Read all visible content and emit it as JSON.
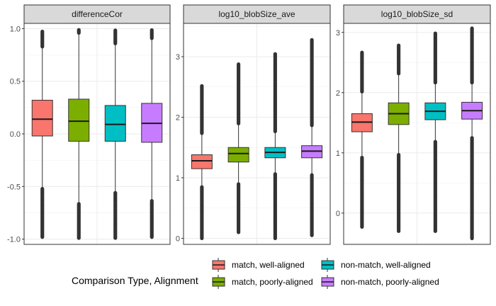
{
  "chart_data": {
    "type": "box",
    "facets": [
      {
        "title": "differenceCor",
        "ylim": [
          -1.05,
          1.05
        ],
        "yticks": [
          -1.0,
          -0.5,
          0.0,
          0.5,
          1.0
        ],
        "ytick_labels": [
          "-1.0",
          "-0.5",
          "0.0",
          "0.5",
          "1.0"
        ],
        "boxes": [
          {
            "group": "match, well-aligned",
            "q1": -0.02,
            "median": 0.14,
            "q3": 0.32,
            "whisker_low": -0.52,
            "whisker_high": 0.82,
            "out_low_min": -0.98,
            "out_high_max": 0.98
          },
          {
            "group": "match, poorly-aligned",
            "q1": -0.07,
            "median": 0.12,
            "q3": 0.33,
            "whisker_low": -0.66,
            "whisker_high": 0.95,
            "out_low_min": -0.99,
            "out_high_max": 0.99
          },
          {
            "group": "non-match, well-aligned",
            "q1": -0.07,
            "median": 0.09,
            "q3": 0.27,
            "whisker_low": -0.56,
            "whisker_high": 0.85,
            "out_low_min": -0.99,
            "out_high_max": 0.99
          },
          {
            "group": "non-match, poorly-aligned",
            "q1": -0.08,
            "median": 0.1,
            "q3": 0.29,
            "whisker_low": -0.63,
            "whisker_high": 0.9,
            "out_low_min": -0.98,
            "out_high_max": 0.99
          }
        ]
      },
      {
        "title": "log10_blobSize_ave",
        "ylim": [
          -0.1,
          3.55
        ],
        "yticks": [
          0,
          1,
          2,
          3
        ],
        "ytick_labels": [
          "0",
          "1",
          "2",
          "3"
        ],
        "boxes": [
          {
            "group": "match, well-aligned",
            "q1": 1.15,
            "median": 1.28,
            "q3": 1.38,
            "whisker_low": 0.85,
            "whisker_high": 1.72,
            "out_low_min": 0.0,
            "out_high_max": 2.52
          },
          {
            "group": "match, poorly-aligned",
            "q1": 1.26,
            "median": 1.4,
            "q3": 1.5,
            "whisker_low": 0.9,
            "whisker_high": 1.88,
            "out_low_min": 0.1,
            "out_high_max": 2.88
          },
          {
            "group": "non-match, well-aligned",
            "q1": 1.33,
            "median": 1.42,
            "q3": 1.5,
            "whisker_low": 1.07,
            "whisker_high": 1.75,
            "out_low_min": 0.0,
            "out_high_max": 3.05
          },
          {
            "group": "non-match, poorly-aligned",
            "q1": 1.33,
            "median": 1.44,
            "q3": 1.53,
            "whisker_low": 1.05,
            "whisker_high": 1.85,
            "out_low_min": 0.05,
            "out_high_max": 3.28
          }
        ]
      },
      {
        "title": "log10_blobSize_sd",
        "ylim": [
          -0.52,
          3.15
        ],
        "yticks": [
          0,
          1,
          2,
          3
        ],
        "ytick_labels": [
          "0",
          "1",
          "2",
          "3"
        ],
        "boxes": [
          {
            "group": "match, well-aligned",
            "q1": 1.35,
            "median": 1.51,
            "q3": 1.65,
            "whisker_low": 0.93,
            "whisker_high": 2.0,
            "out_low_min": -0.23,
            "out_high_max": 2.68
          },
          {
            "group": "match, poorly-aligned",
            "q1": 1.47,
            "median": 1.65,
            "q3": 1.83,
            "whisker_low": 0.98,
            "whisker_high": 2.3,
            "out_low_min": -0.3,
            "out_high_max": 2.8
          },
          {
            "group": "non-match, well-aligned",
            "q1": 1.55,
            "median": 1.69,
            "q3": 1.83,
            "whisker_low": 1.2,
            "whisker_high": 2.15,
            "out_low_min": -0.3,
            "out_high_max": 3.0
          },
          {
            "group": "non-match, poorly-aligned",
            "q1": 1.56,
            "median": 1.7,
            "q3": 1.84,
            "whisker_low": 1.25,
            "whisker_high": 2.15,
            "out_low_min": -0.42,
            "out_high_max": 3.08
          }
        ]
      }
    ],
    "legend": {
      "title": "Comparison Type, Alignment",
      "position": "bottom",
      "items": [
        {
          "label": "match, well-aligned",
          "color": "#F8766D"
        },
        {
          "label": "match, poorly-aligned",
          "color": "#7CAE00"
        },
        {
          "label": "non-match, well-aligned",
          "color": "#00BFC4"
        },
        {
          "label": "non-match, poorly-aligned",
          "color": "#C77CFF"
        }
      ]
    },
    "grid": true
  }
}
